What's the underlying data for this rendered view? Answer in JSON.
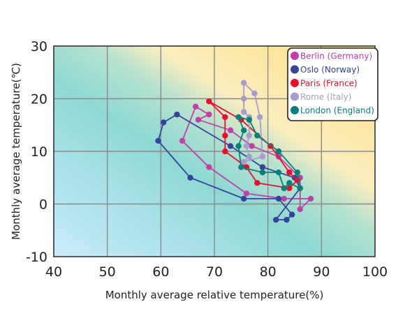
{
  "chart_data": {
    "type": "line",
    "title": "",
    "xlabel": "Monthly average relative temperature(%)",
    "ylabel": "Monthly average temperature(℃)",
    "xlim": [
      40,
      100
    ],
    "ylim": [
      -10,
      30
    ],
    "x_ticks": [
      "40",
      "50",
      "60",
      "70",
      "80",
      "90",
      "100"
    ],
    "y_ticks": [
      "-10",
      "0",
      "10",
      "20",
      "30"
    ],
    "grid": true,
    "legend_position": "top-right",
    "background": "diagonal gradient: light blue lower-left, teal middle, yellow upper-right",
    "series": [
      {
        "name": "Berlin (Germany)",
        "color": "#c040a8",
        "points": [
          [
            86,
            -1
          ],
          [
            88,
            1
          ],
          [
            83,
            1
          ],
          [
            76,
            2
          ],
          [
            69,
            7
          ],
          [
            64,
            12
          ],
          [
            66.5,
            18.5
          ],
          [
            69,
            17
          ],
          [
            67,
            16
          ],
          [
            73,
            14
          ],
          [
            77,
            11
          ],
          [
            82,
            9
          ],
          [
            86,
            5
          ],
          [
            86,
            -1
          ]
        ]
      },
      {
        "name": "Oslo (Norway)",
        "color": "#33449a",
        "points": [
          [
            81.5,
            -3
          ],
          [
            83.5,
            -3
          ],
          [
            84.5,
            -2
          ],
          [
            82,
            1
          ],
          [
            75.5,
            1
          ],
          [
            65.5,
            5
          ],
          [
            59.5,
            12
          ],
          [
            60.5,
            15.5
          ],
          [
            63,
            17
          ],
          [
            73,
            11
          ],
          [
            79,
            7
          ],
          [
            85,
            5
          ],
          [
            86,
            3
          ],
          [
            81.5,
            -3
          ]
        ]
      },
      {
        "name": "Paris (France)",
        "color": "#e60f2d",
        "points": [
          [
            84,
            3
          ],
          [
            85.5,
            4.5
          ],
          [
            84,
            6
          ],
          [
            80.5,
            11
          ],
          [
            75,
            16
          ],
          [
            69,
            19.5
          ],
          [
            72,
            16.5
          ],
          [
            72,
            13
          ],
          [
            72,
            10
          ],
          [
            76,
            7
          ],
          [
            78,
            4
          ],
          [
            84,
            3
          ]
        ]
      },
      {
        "name": "Rome (Italy)",
        "color": "#a79bd2",
        "points": [
          [
            79,
            9
          ],
          [
            78.5,
            16.5
          ],
          [
            77.5,
            21
          ],
          [
            75.5,
            23
          ],
          [
            75.5,
            20
          ],
          [
            75.5,
            17.5
          ],
          [
            76.5,
            16.5
          ],
          [
            76.5,
            13
          ],
          [
            76,
            11
          ],
          [
            76.5,
            9
          ],
          [
            75.5,
            8
          ],
          [
            79,
            9
          ]
        ]
      },
      {
        "name": "London (England)",
        "color": "#0a7f78",
        "points": [
          [
            85.5,
            6
          ],
          [
            86,
            3
          ],
          [
            84,
            4
          ],
          [
            83,
            3
          ],
          [
            82,
            6
          ],
          [
            79,
            6
          ],
          [
            75,
            7
          ],
          [
            74.5,
            11
          ],
          [
            75.5,
            14
          ],
          [
            74.5,
            16.5
          ],
          [
            76.5,
            16
          ],
          [
            78,
            13
          ],
          [
            82,
            10
          ],
          [
            85.5,
            6
          ]
        ]
      }
    ]
  }
}
